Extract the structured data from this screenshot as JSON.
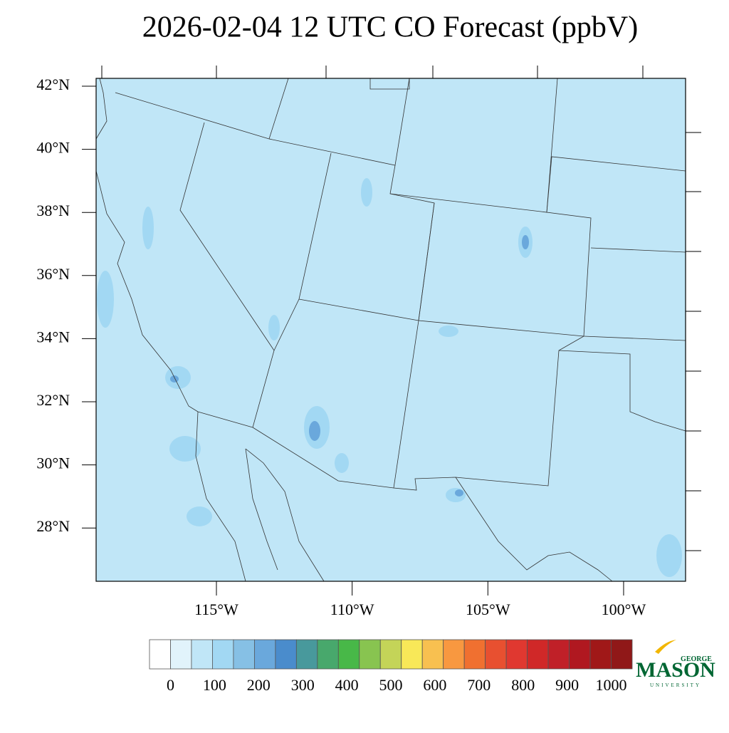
{
  "title": "2026-02-04 12 UTC CO Forecast (ppbV)",
  "map": {
    "lat_ticks": [
      {
        "value": 42,
        "label": "42°N"
      },
      {
        "value": 40,
        "label": "40°N"
      },
      {
        "value": 38,
        "label": "38°N"
      },
      {
        "value": 36,
        "label": "36°N"
      },
      {
        "value": 34,
        "label": "34°N"
      },
      {
        "value": 32,
        "label": "32°N"
      },
      {
        "value": 30,
        "label": "30°N"
      },
      {
        "value": 28,
        "label": "28°N"
      }
    ],
    "lon_ticks": [
      {
        "value": -115,
        "label": "115°W"
      },
      {
        "value": -110,
        "label": "110°W"
      },
      {
        "value": -105,
        "label": "105°W"
      },
      {
        "value": -100,
        "label": "100°W"
      }
    ]
  },
  "colorbar": {
    "colors": [
      "#ffffff",
      "#e1f3fb",
      "#c0e6f7",
      "#a2d8f3",
      "#86c0e5",
      "#6aa8dc",
      "#4a8ccc",
      "#48999c",
      "#48a86c",
      "#48b848",
      "#88c450",
      "#c4d458",
      "#f8e858",
      "#f8c050",
      "#f89840",
      "#f07030",
      "#e85030",
      "#e03830",
      "#d02828",
      "#c02028",
      "#b01820",
      "#a01818",
      "#901818"
    ],
    "ticks": [
      0,
      100,
      200,
      300,
      400,
      500,
      600,
      700,
      800,
      900,
      1000
    ]
  },
  "logo": {
    "top": "GEORGE",
    "name": "MASON",
    "bottom": "UNIVERSITY"
  }
}
